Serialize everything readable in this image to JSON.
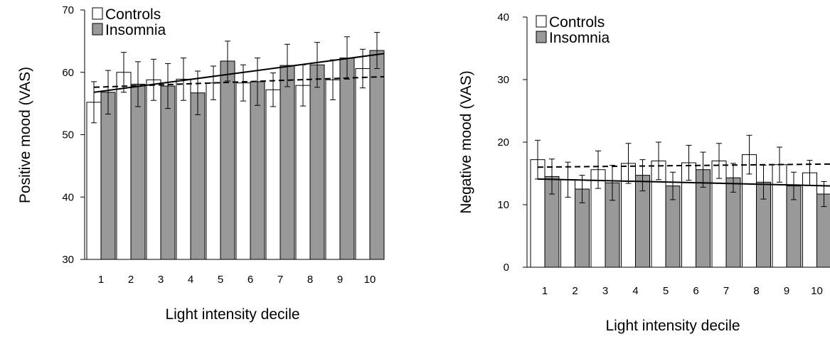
{
  "chart_data": [
    {
      "type": "bar",
      "title": "",
      "xlabel": "Light intensity decile",
      "ylabel": "Positive mood (VAS)",
      "ylim": [
        30,
        70
      ],
      "yticks": [
        "30",
        "40",
        "50",
        "60",
        "70"
      ],
      "categories": [
        "1",
        "2",
        "3",
        "4",
        "5",
        "6",
        "7",
        "8",
        "9",
        "10"
      ],
      "legend_position": "top-left",
      "series": [
        {
          "name": "Controls",
          "color": "#ffffff",
          "values": [
            55.2,
            60.0,
            58.8,
            58.9,
            58.3,
            58.3,
            57.2,
            57.9,
            58.8,
            60.6
          ],
          "errors": [
            3.3,
            3.2,
            3.3,
            3.4,
            2.7,
            2.9,
            2.7,
            3.3,
            3.2,
            3.1
          ],
          "trend": {
            "style": "dashed",
            "start": 57.6,
            "end": 59.3
          }
        },
        {
          "name": "Insomnia",
          "color": "#999999",
          "values": [
            56.8,
            58.1,
            57.8,
            56.7,
            61.8,
            58.5,
            61.1,
            61.2,
            62.3,
            63.5
          ],
          "errors": [
            3.5,
            3.6,
            3.6,
            3.5,
            3.2,
            3.8,
            3.4,
            3.6,
            3.4,
            2.9
          ],
          "trend": {
            "style": "solid",
            "start": 56.8,
            "end": 63.0
          }
        }
      ]
    },
    {
      "type": "bar",
      "title": "",
      "xlabel": "Light intensity decile",
      "ylabel": "Negative mood (VAS)",
      "ylim": [
        0,
        40
      ],
      "yticks": [
        "0",
        "10",
        "20",
        "30",
        "40"
      ],
      "categories": [
        "1",
        "2",
        "3",
        "4",
        "5",
        "6",
        "7",
        "8",
        "9",
        "10"
      ],
      "legend_position": "top-left",
      "series": [
        {
          "name": "Controls",
          "color": "#ffffff",
          "values": [
            17.2,
            14.0,
            15.6,
            16.6,
            17.0,
            16.7,
            17.0,
            18.0,
            16.4,
            15.1
          ],
          "errors": [
            3.1,
            2.8,
            3.0,
            3.2,
            3.0,
            2.8,
            2.8,
            3.1,
            2.8,
            2.0
          ],
          "trend": {
            "style": "dashed",
            "start": 16.0,
            "end": 16.5
          }
        },
        {
          "name": "Insomnia",
          "color": "#999999",
          "values": [
            14.5,
            12.5,
            13.5,
            14.7,
            13.0,
            15.6,
            14.3,
            13.6,
            13.0,
            11.7
          ],
          "errors": [
            2.8,
            2.2,
            2.8,
            2.5,
            2.2,
            2.8,
            2.3,
            2.7,
            2.2,
            2.0
          ],
          "trend": {
            "style": "solid",
            "start": 14.1,
            "end": 13.0
          }
        }
      ]
    }
  ]
}
